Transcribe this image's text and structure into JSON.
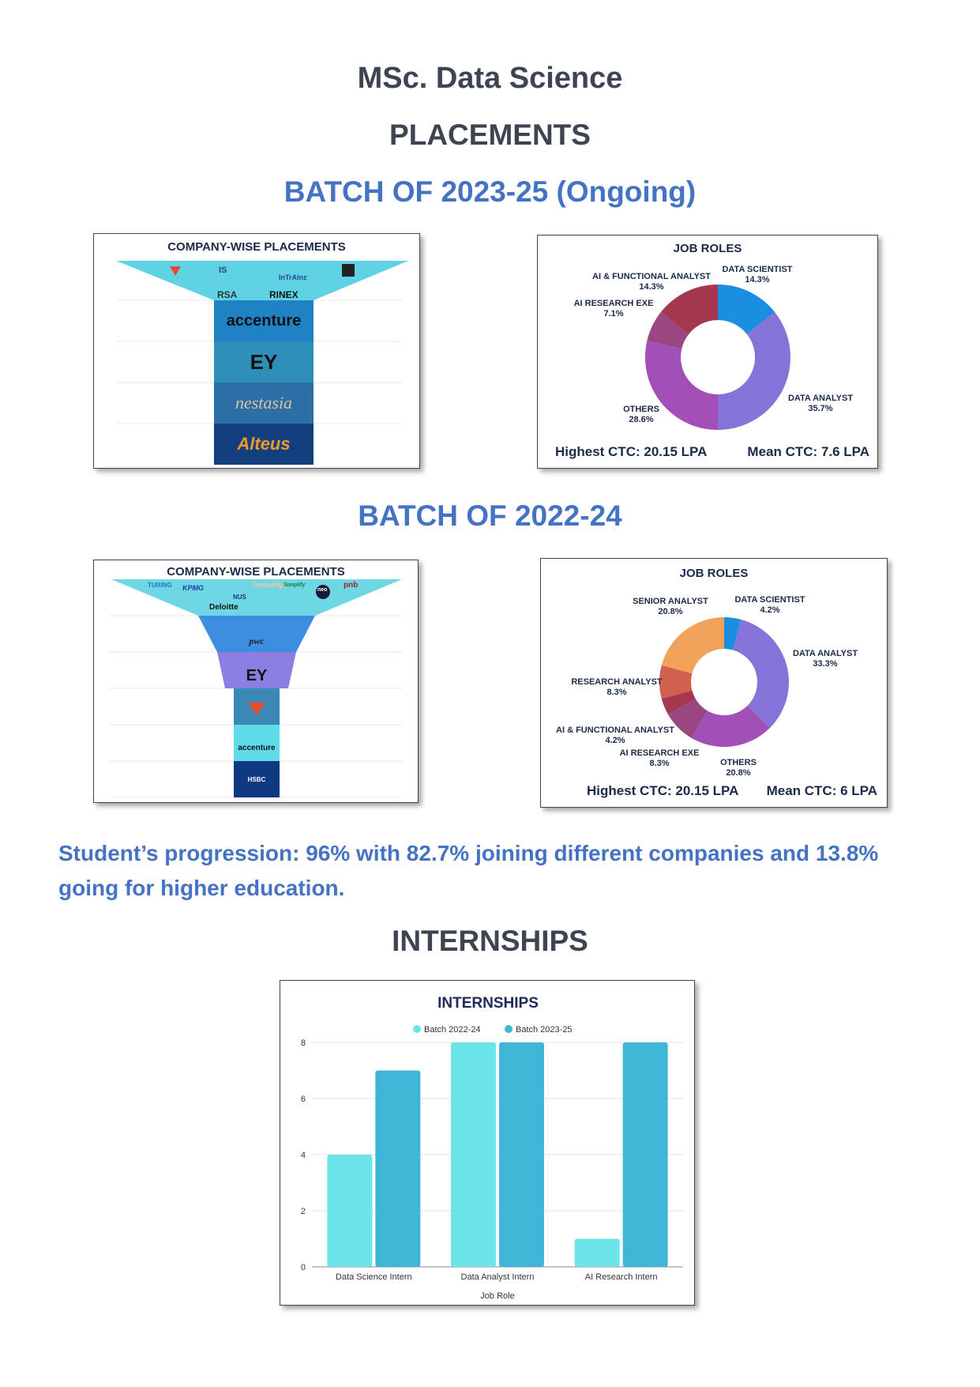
{
  "header": {
    "title": "MSc. Data Science",
    "placements": "PLACEMENTS",
    "batch1": "BATCH OF 2023-25 (Ongoing)",
    "batch2": "BATCH OF 2022-24",
    "progression": "Student’s progression: 96% with 82.7% joining different companies and 13.8% going for higher education.",
    "internships": "INTERNSHIPS"
  },
  "funnel1": {
    "title": "COMPANY-WISE PLACEMENTS",
    "top_logos": [
      "IS",
      "InTrAinz",
      "RSA",
      "RINEX"
    ],
    "levels": [
      "accenture",
      "EY",
      "nestasia",
      "Alteus"
    ],
    "colors": [
      "#5fd3e3",
      "#1f82c4",
      "#2e8fb8",
      "#2c6ea6",
      "#12407f"
    ]
  },
  "funnel2": {
    "title": "COMPANY-WISE PLACEMENTS",
    "top_logos": [
      "TURING",
      "KPMG",
      "NUS",
      "TradeAlgo",
      "Deloitte",
      "Simplify",
      "neo",
      "pnb"
    ],
    "levels": [
      "pwc",
      "EY",
      "",
      "accenture",
      "HSBC"
    ],
    "colors": [
      "#6ed7e4",
      "#3c8fe0",
      "#8a7fe0",
      "#3a88b6",
      "#5fdbe8",
      "#0f3a82"
    ]
  },
  "pie1": {
    "title": "JOB ROLES",
    "highest": "Highest CTC: 20.15 LPA",
    "mean": "Mean CTC: 7.6 LPA",
    "slices": [
      {
        "label": "DATA SCIENTIST",
        "pct": "14.3%",
        "value": 14.3,
        "color": "#1a8ee0"
      },
      {
        "label": "DATA ANALYST",
        "pct": "35.7%",
        "value": 35.7,
        "color": "#8673d8"
      },
      {
        "label": "OTHERS",
        "pct": "28.6%",
        "value": 28.6,
        "color": "#a24fb8"
      },
      {
        "label": "AI RESEARCH EXE",
        "pct": "7.1%",
        "value": 7.1,
        "color": "#9a4680"
      },
      {
        "label": "AI & FUNCTIONAL ANALYST",
        "pct": "14.3%",
        "value": 14.3,
        "color": "#a5384e"
      }
    ]
  },
  "pie2": {
    "title": "JOB ROLES",
    "highest": "Highest CTC: 20.15 LPA",
    "mean": "Mean CTC: 6 LPA",
    "slices": [
      {
        "label": "DATA SCIENTIST",
        "pct": "4.2%",
        "value": 4.2,
        "color": "#1a8ee0"
      },
      {
        "label": "DATA ANALYST",
        "pct": "33.3%",
        "value": 33.3,
        "color": "#8673d8"
      },
      {
        "label": "OTHERS",
        "pct": "20.8%",
        "value": 20.8,
        "color": "#a24fb8"
      },
      {
        "label": "AI RESEARCH EXE",
        "pct": "8.3%",
        "value": 8.3,
        "color": "#9a4680"
      },
      {
        "label": "AI & FUNCTIONAL ANALYST",
        "pct": "4.2%",
        "value": 4.2,
        "color": "#a5384e"
      },
      {
        "label": "RESEARCH ANALYST",
        "pct": "8.3%",
        "value": 8.3,
        "color": "#d0614e"
      },
      {
        "label": "SENIOR ANALYST",
        "pct": "20.8%",
        "value": 20.8,
        "color": "#f2a25a"
      }
    ]
  },
  "chart_data": {
    "type": "bar",
    "title": "INTERNSHIPS",
    "categories": [
      "Data Science Intern",
      "Data Analyst Intern",
      "AI Research Intern"
    ],
    "series": [
      {
        "name": "Batch 2022-24",
        "values": [
          4,
          8,
          1
        ],
        "color": "#6ce5e8"
      },
      {
        "name": "Batch 2023-25",
        "values": [
          7,
          8,
          8
        ],
        "color": "#3fb6d6"
      }
    ],
    "xlabel": "Job Role",
    "ylabel": "",
    "ylim": [
      0,
      8
    ],
    "yticks": [
      0,
      2,
      4,
      6,
      8
    ],
    "grid": true,
    "legend": "top"
  }
}
